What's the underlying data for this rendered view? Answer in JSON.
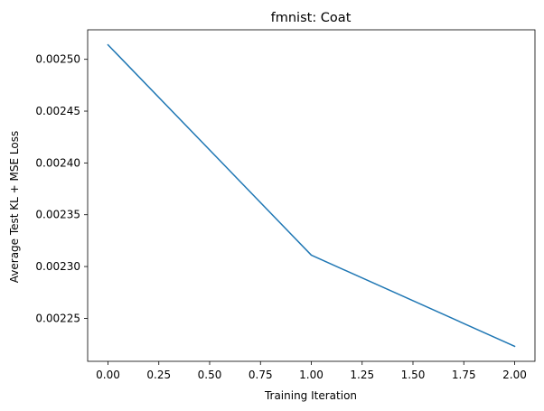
{
  "chart_data": {
    "type": "line",
    "title": "fmnist: Coat",
    "xlabel": "Training Iteration",
    "ylabel": "Average Test KL + MSE Loss",
    "xlim": [
      -0.1,
      2.1
    ],
    "ylim": [
      0.0022085,
      0.0025285
    ],
    "xticks": [
      0.0,
      0.25,
      0.5,
      0.75,
      1.0,
      1.25,
      1.5,
      1.75,
      2.0
    ],
    "xtick_labels": [
      "0.00",
      "0.25",
      "0.50",
      "0.75",
      "1.00",
      "1.25",
      "1.50",
      "1.75",
      "2.00"
    ],
    "yticks": [
      0.00225,
      0.0023,
      0.00235,
      0.0024,
      0.00245,
      0.0025
    ],
    "ytick_labels": [
      "0.00225",
      "0.00230",
      "0.00235",
      "0.00240",
      "0.00245",
      "0.00250"
    ],
    "grid": false,
    "series": [
      {
        "color": "#1f77b4",
        "x": [
          0,
          1,
          2
        ],
        "y": [
          0.002514,
          0.002311,
          0.002223
        ]
      }
    ]
  }
}
